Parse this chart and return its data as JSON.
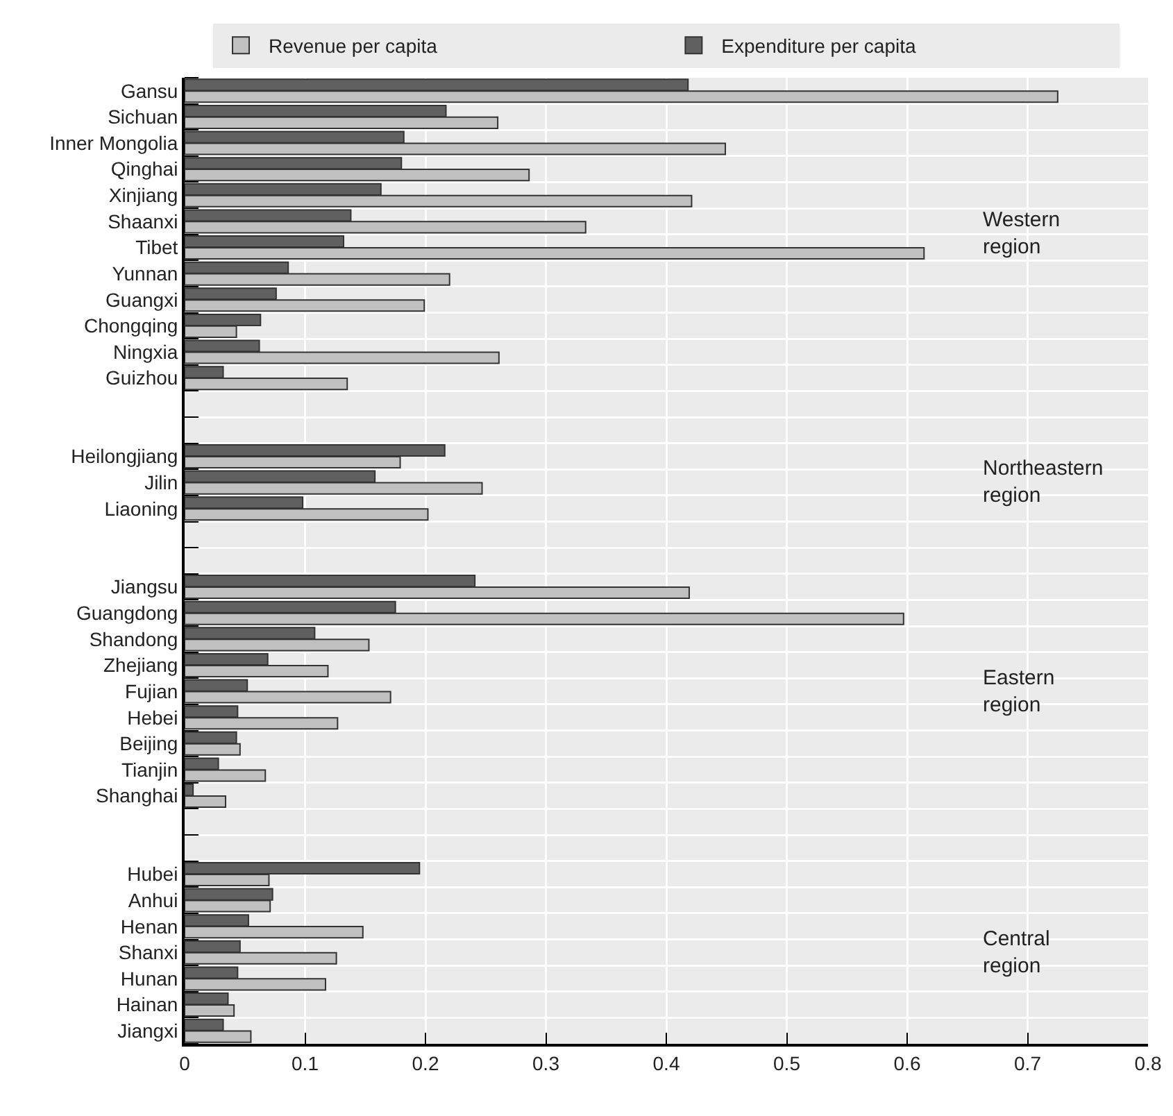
{
  "chart_data": {
    "type": "bar",
    "orientation": "horizontal",
    "categories": [
      "Gansu",
      "Sichuan",
      "Inner Mongolia",
      "Qinghai",
      "Xinjiang",
      "Shaanxi",
      "Tibet",
      "Yunnan",
      "Guangxi",
      "Chongqing",
      "Ningxia",
      "Guizhou",
      null,
      null,
      "Heilongjiang",
      "Jilin",
      "Liaoning",
      null,
      null,
      "Jiangsu",
      "Guangdong",
      "Shandong",
      "Zhejiang",
      "Fujian",
      "Hebei",
      "Beijing",
      "Tianjin",
      "Shanghai",
      null,
      null,
      "Hubei",
      "Anhui",
      "Henan",
      "Shanxi",
      "Hunan",
      "Hainan",
      "Jiangxi"
    ],
    "series": [
      {
        "name": "Revenue per capita",
        "color": "#c0c0c0",
        "values": [
          0.725,
          0.26,
          0.449,
          0.286,
          0.421,
          0.333,
          0.614,
          0.22,
          0.199,
          0.043,
          0.261,
          0.135,
          null,
          null,
          0.179,
          0.247,
          0.202,
          null,
          null,
          0.419,
          0.597,
          0.153,
          0.119,
          0.171,
          0.127,
          0.046,
          0.067,
          0.034,
          null,
          null,
          0.07,
          0.071,
          0.148,
          0.126,
          0.117,
          0.041,
          0.055
        ]
      },
      {
        "name": "Expenditure per capita",
        "color": "#606060",
        "values": [
          0.418,
          0.217,
          0.182,
          0.18,
          0.163,
          0.138,
          0.132,
          0.086,
          0.076,
          0.063,
          0.062,
          0.032,
          null,
          null,
          0.216,
          0.158,
          0.098,
          null,
          null,
          0.241,
          0.175,
          0.108,
          0.069,
          0.052,
          0.044,
          0.043,
          0.028,
          0.007,
          null,
          null,
          0.195,
          0.073,
          0.053,
          0.046,
          0.044,
          0.036,
          0.032
        ]
      }
    ],
    "xlim": [
      0,
      0.8
    ],
    "xticks": [
      0,
      0.1,
      0.2,
      0.3,
      0.4,
      0.5,
      0.6,
      0.7,
      0.8
    ],
    "grid": true,
    "legend": "top",
    "annotations": [
      "Western\nregion",
      "Northeastern\nregion",
      "Eastern\nregion",
      "Central\nregion"
    ]
  }
}
